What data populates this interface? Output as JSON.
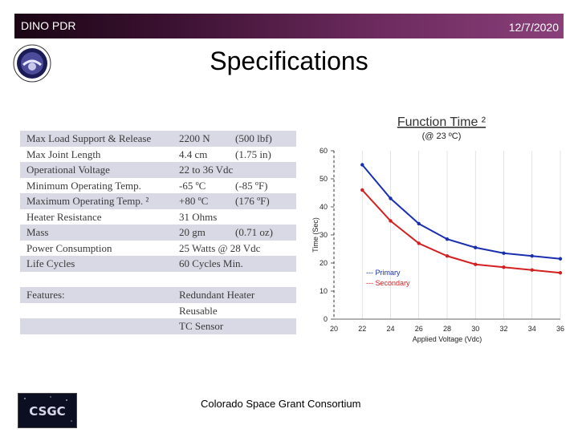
{
  "header": {
    "left_text": "DINO PDR",
    "right_text": "12/7/2020"
  },
  "page_title": "Specifications",
  "specs": [
    {
      "c1": "Max Load Support & Release",
      "c2": "2200 N",
      "c3": "(500 lbf)",
      "shaded": true
    },
    {
      "c1": "Max Joint Length",
      "c2": "4.4 cm",
      "c3": "(1.75 in)",
      "shaded": false
    },
    {
      "c1": "Operational Voltage",
      "c2": "22 to 36 Vdc",
      "c3": "",
      "shaded": true
    },
    {
      "c1": "Minimum Operating Temp.",
      "c2": "-65 ºC",
      "c3": "(-85 ºF)",
      "shaded": false
    },
    {
      "c1": "Maximum Operating Temp. ²",
      "c2": "+80 ºC",
      "c3": "(176 ºF)",
      "shaded": true
    },
    {
      "c1": "Heater Resistance",
      "c2": "31 Ohms",
      "c3": "",
      "shaded": false
    },
    {
      "c1": "Mass",
      "c2": "20 gm",
      "c3": "(0.71 oz)",
      "shaded": true
    },
    {
      "c1": "Power Consumption",
      "c2": "25 Watts @ 28 Vdc",
      "c3": "",
      "shaded": false
    },
    {
      "c1": "Life Cycles",
      "c2": "60 Cycles Min.",
      "c3": "",
      "shaded": true
    },
    {
      "c1": "",
      "c2": "",
      "c3": "",
      "shaded": false
    },
    {
      "c1": "Features:",
      "c2": "Redundant Heater",
      "c3": "",
      "shaded": true
    },
    {
      "c1": "",
      "c2": "Reusable",
      "c3": "",
      "shaded": false
    },
    {
      "c1": "",
      "c2": "TC Sensor",
      "c3": "",
      "shaded": true
    }
  ],
  "chart_data": {
    "type": "line",
    "title": "Function Time ²",
    "subtitle": "(@ 23 ºC)",
    "xlabel": "Applied Voltage (Vdc)",
    "ylabel": "Time (Sec)",
    "xlim": [
      20,
      36
    ],
    "ylim": [
      0,
      60
    ],
    "x_ticks": [
      20,
      22,
      24,
      26,
      28,
      30,
      32,
      34,
      36
    ],
    "y_ticks": [
      0,
      10,
      20,
      30,
      40,
      50,
      60
    ],
    "legend_position": "lower-left",
    "series": [
      {
        "name": "Primary",
        "color": "#1a2fb0",
        "x": [
          22,
          24,
          26,
          28,
          30,
          32,
          34,
          36
        ],
        "y": [
          55,
          43,
          34,
          28.5,
          25.5,
          23.5,
          22.5,
          21.5
        ]
      },
      {
        "name": "Secondary",
        "color": "#d42020",
        "x": [
          22,
          24,
          26,
          28,
          30,
          32,
          34,
          36
        ],
        "y": [
          46,
          35,
          27,
          22.5,
          19.5,
          18.5,
          17.5,
          16.5
        ]
      }
    ]
  },
  "legend_primary_label": "--- Primary",
  "legend_secondary_label": "--- Secondary",
  "footer": {
    "logo_text": "CSGC",
    "center_text": "Colorado Space Grant Consortium"
  }
}
